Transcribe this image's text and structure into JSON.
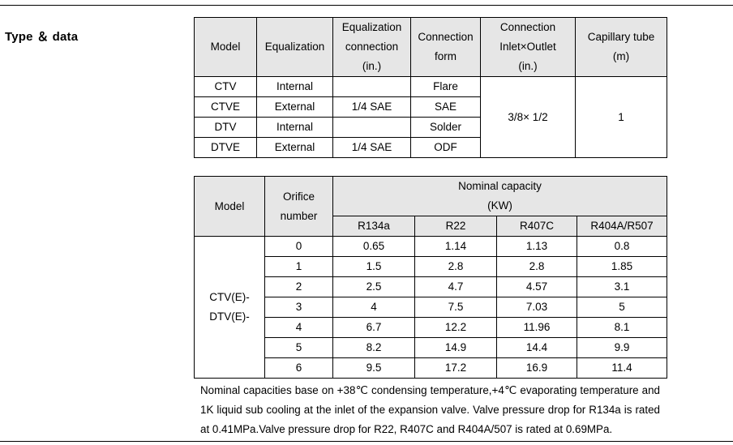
{
  "title": "Type ＆ data",
  "table1": {
    "headers": [
      "Model",
      "Equalization",
      "Equalization connection (in.)",
      "Connection form",
      "Connection Inlet×Outlet (in.)",
      "Capillary tube (m)"
    ],
    "header_lines": {
      "model": "Model",
      "equalization": "Equalization",
      "eq_conn_1": "Equalization",
      "eq_conn_2": "connection",
      "eq_conn_3": "(in.)",
      "form_1": "Connection",
      "form_2": "form",
      "inout_1": "Connection",
      "inout_2": "Inlet×Outlet",
      "inout_3": "(in.)",
      "cap_1": "Capillary tube",
      "cap_2": "(m)"
    },
    "rows": [
      {
        "model": "CTV",
        "equalization": "Internal",
        "eq_connection": "",
        "form": "Flare"
      },
      {
        "model": "CTVE",
        "equalization": "External",
        "eq_connection": "1/4 SAE",
        "form": "SAE"
      },
      {
        "model": "DTV",
        "equalization": "Internal",
        "eq_connection": "",
        "form": "Solder"
      },
      {
        "model": "DTVE",
        "equalization": "External",
        "eq_connection": "1/4 SAE",
        "form": "ODF"
      }
    ],
    "inlet_outlet": "3/8× 1/2",
    "capillary": "1"
  },
  "table2": {
    "model_header": "Model",
    "orifice_header_1": "Orifice",
    "orifice_header_2": "number",
    "capacity_header_1": "Nominal capacity",
    "capacity_header_2": "(KW)",
    "refrigerants": [
      "R134a",
      "R22",
      "R407C",
      "R404A/R507"
    ],
    "model_label_1": "CTV(E)-",
    "model_label_2": "DTV(E)-",
    "rows": [
      {
        "orifice": "0",
        "values": [
          "0.65",
          "1.14",
          "1.13",
          "0.8"
        ]
      },
      {
        "orifice": "1",
        "values": [
          "1.5",
          "2.8",
          "2.8",
          "1.85"
        ]
      },
      {
        "orifice": "2",
        "values": [
          "2.5",
          "4.7",
          "4.57",
          "3.1"
        ]
      },
      {
        "orifice": "3",
        "values": [
          "4",
          "7.5",
          "7.03",
          "5"
        ]
      },
      {
        "orifice": "4",
        "values": [
          "6.7",
          "12.2",
          "11.96",
          "8.1"
        ]
      },
      {
        "orifice": "5",
        "values": [
          "8.2",
          "14.9",
          "14.4",
          "9.9"
        ]
      },
      {
        "orifice": "6",
        "values": [
          "9.5",
          "17.2",
          "16.9",
          "11.4"
        ]
      }
    ]
  },
  "note": "Nominal capacities base on +38℃ condensing temperature,+4℃ evaporating temperature and 1K liquid sub cooling at the inlet of the expansion valve. Valve pressure drop for R134a is rated at 0.41MPa.Valve pressure drop for R22, R407C and R404A/507 is rated at 0.69MPa."
}
